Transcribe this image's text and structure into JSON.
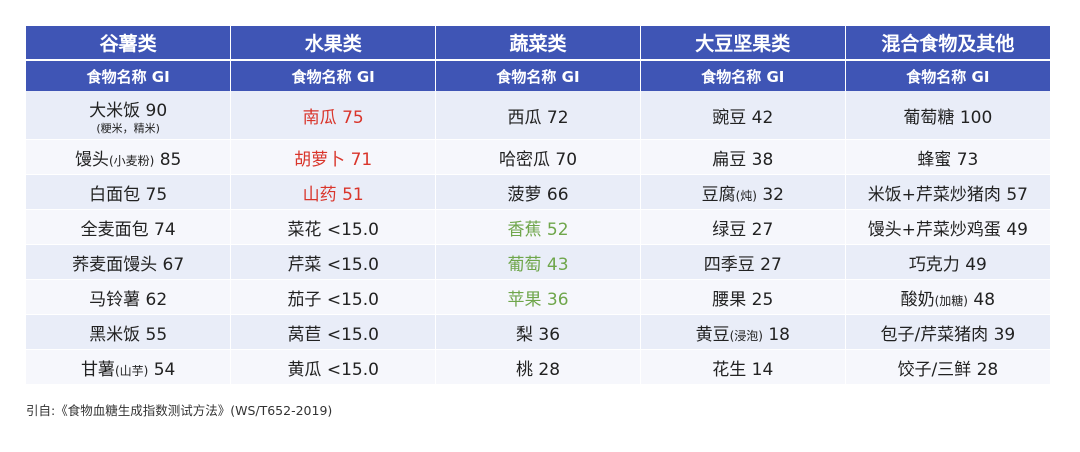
{
  "categories": [
    "谷薯类",
    "水果类",
    "蔬菜类",
    "大豆坚果类",
    "混合食物及其他"
  ],
  "subheader": "食物名称 GI",
  "rows": [
    [
      {
        "name": "大米饭",
        "gi": "90",
        "note": "(粳米，精米)",
        "color": "#222222"
      },
      {
        "name": "南瓜",
        "gi": "75",
        "color": "#d9352b"
      },
      {
        "name": "西瓜",
        "gi": "72",
        "color": "#222222"
      },
      {
        "name": "豌豆",
        "gi": "42",
        "color": "#222222"
      },
      {
        "name": "葡萄糖",
        "gi": "100",
        "color": "#222222"
      }
    ],
    [
      {
        "name": "馒头",
        "suffix": "(小麦粉)",
        "gi": "85",
        "color": "#222222"
      },
      {
        "name": "胡萝卜",
        "gi": "71",
        "color": "#d9352b"
      },
      {
        "name": "哈密瓜",
        "gi": "70",
        "color": "#222222"
      },
      {
        "name": "扁豆",
        "gi": "38",
        "color": "#222222"
      },
      {
        "name": "蜂蜜",
        "gi": "73",
        "color": "#222222"
      }
    ],
    [
      {
        "name": "白面包",
        "gi": "75",
        "color": "#222222"
      },
      {
        "name": "山药",
        "gi": "51",
        "color": "#d9352b"
      },
      {
        "name": "菠萝",
        "gi": "66",
        "color": "#222222"
      },
      {
        "name": "豆腐",
        "suffix": "(炖)",
        "gi": "32",
        "color": "#222222"
      },
      {
        "name": "米饭+芹菜炒猪肉",
        "gi": "57",
        "color": "#222222"
      }
    ],
    [
      {
        "name": "全麦面包",
        "gi": "74",
        "color": "#222222"
      },
      {
        "name": "菜花",
        "gi": "<15.0",
        "color": "#222222"
      },
      {
        "name": "香蕉",
        "gi": "52",
        "color": "#6fa64b"
      },
      {
        "name": "绿豆",
        "gi": "27",
        "color": "#222222"
      },
      {
        "name": "馒头+芹菜炒鸡蛋",
        "gi": "49",
        "color": "#222222"
      }
    ],
    [
      {
        "name": "荞麦面馒头",
        "gi": "67",
        "color": "#222222"
      },
      {
        "name": "芹菜",
        "gi": "<15.0",
        "color": "#222222"
      },
      {
        "name": "葡萄",
        "gi": "43",
        "color": "#6fa64b"
      },
      {
        "name": "四季豆",
        "gi": "27",
        "color": "#222222"
      },
      {
        "name": "巧克力",
        "gi": "49",
        "color": "#222222"
      }
    ],
    [
      {
        "name": "马铃薯",
        "gi": "62",
        "color": "#222222"
      },
      {
        "name": "茄子",
        "gi": "<15.0",
        "color": "#222222"
      },
      {
        "name": "苹果",
        "gi": "36",
        "color": "#6fa64b"
      },
      {
        "name": "腰果",
        "gi": "25",
        "color": "#222222"
      },
      {
        "name": "酸奶",
        "suffix": "(加糖)",
        "gi": "48",
        "color": "#222222"
      }
    ],
    [
      {
        "name": "黑米饭",
        "gi": "55",
        "color": "#222222"
      },
      {
        "name": "莴苣",
        "gi": "<15.0",
        "color": "#222222"
      },
      {
        "name": "梨",
        "gi": "36",
        "color": "#222222"
      },
      {
        "name": "黄豆",
        "suffix": "(浸泡)",
        "gi": "18",
        "color": "#222222"
      },
      {
        "name": "包子/芹菜猪肉",
        "gi": "39",
        "color": "#222222"
      }
    ],
    [
      {
        "name": "甘薯",
        "suffix": "(山芋)",
        "gi": "54",
        "color": "#222222"
      },
      {
        "name": "黄瓜",
        "gi": "<15.0",
        "color": "#222222"
      },
      {
        "name": "桃",
        "gi": "28",
        "color": "#222222"
      },
      {
        "name": "花生",
        "gi": "14",
        "color": "#222222"
      },
      {
        "name": "饺子/三鲜",
        "gi": "28",
        "color": "#222222"
      }
    ]
  ],
  "footer": "引自:《食物血糖生成指数测试方法》(WS/T652-2019)"
}
